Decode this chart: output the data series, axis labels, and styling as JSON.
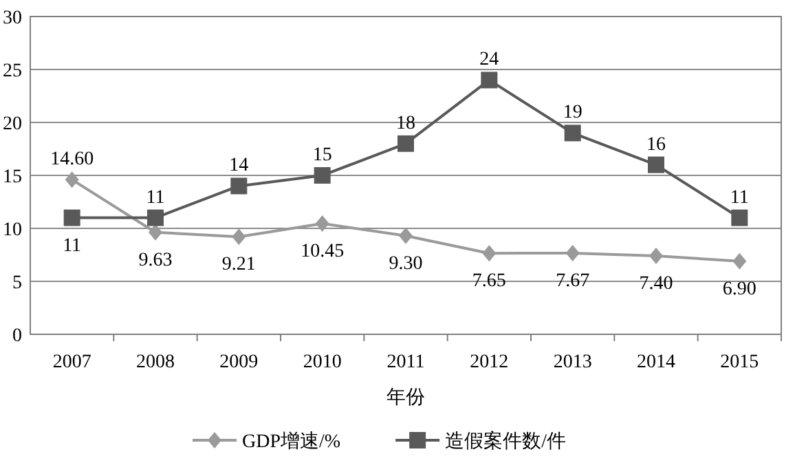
{
  "chart_data": {
    "type": "line",
    "xlabel": "年份",
    "categories": [
      "2007",
      "2008",
      "2009",
      "2010",
      "2011",
      "2012",
      "2013",
      "2014",
      "2015"
    ],
    "series": [
      {
        "name": "GDP增速/%",
        "color": "#9a9a9a",
        "marker": "diamond",
        "values": [
          14.6,
          9.63,
          9.21,
          10.45,
          9.3,
          7.65,
          7.67,
          7.4,
          6.9
        ],
        "value_labels": [
          "14.60",
          "9.63",
          "9.21",
          "10.45",
          "9.30",
          "7.65",
          "7.67",
          "7.40",
          "6.90"
        ]
      },
      {
        "name": "造假案件数/件",
        "color": "#595959",
        "marker": "square",
        "values": [
          11,
          11,
          14,
          15,
          18,
          24,
          19,
          16,
          11
        ],
        "value_labels": [
          "11",
          "11",
          "14",
          "15",
          "18",
          "24",
          "19",
          "16",
          "11"
        ]
      }
    ],
    "ylim": [
      0,
      30
    ],
    "yticks": [
      0,
      5,
      10,
      15,
      20,
      25,
      30
    ],
    "grid": "y",
    "legend": "bottom"
  }
}
